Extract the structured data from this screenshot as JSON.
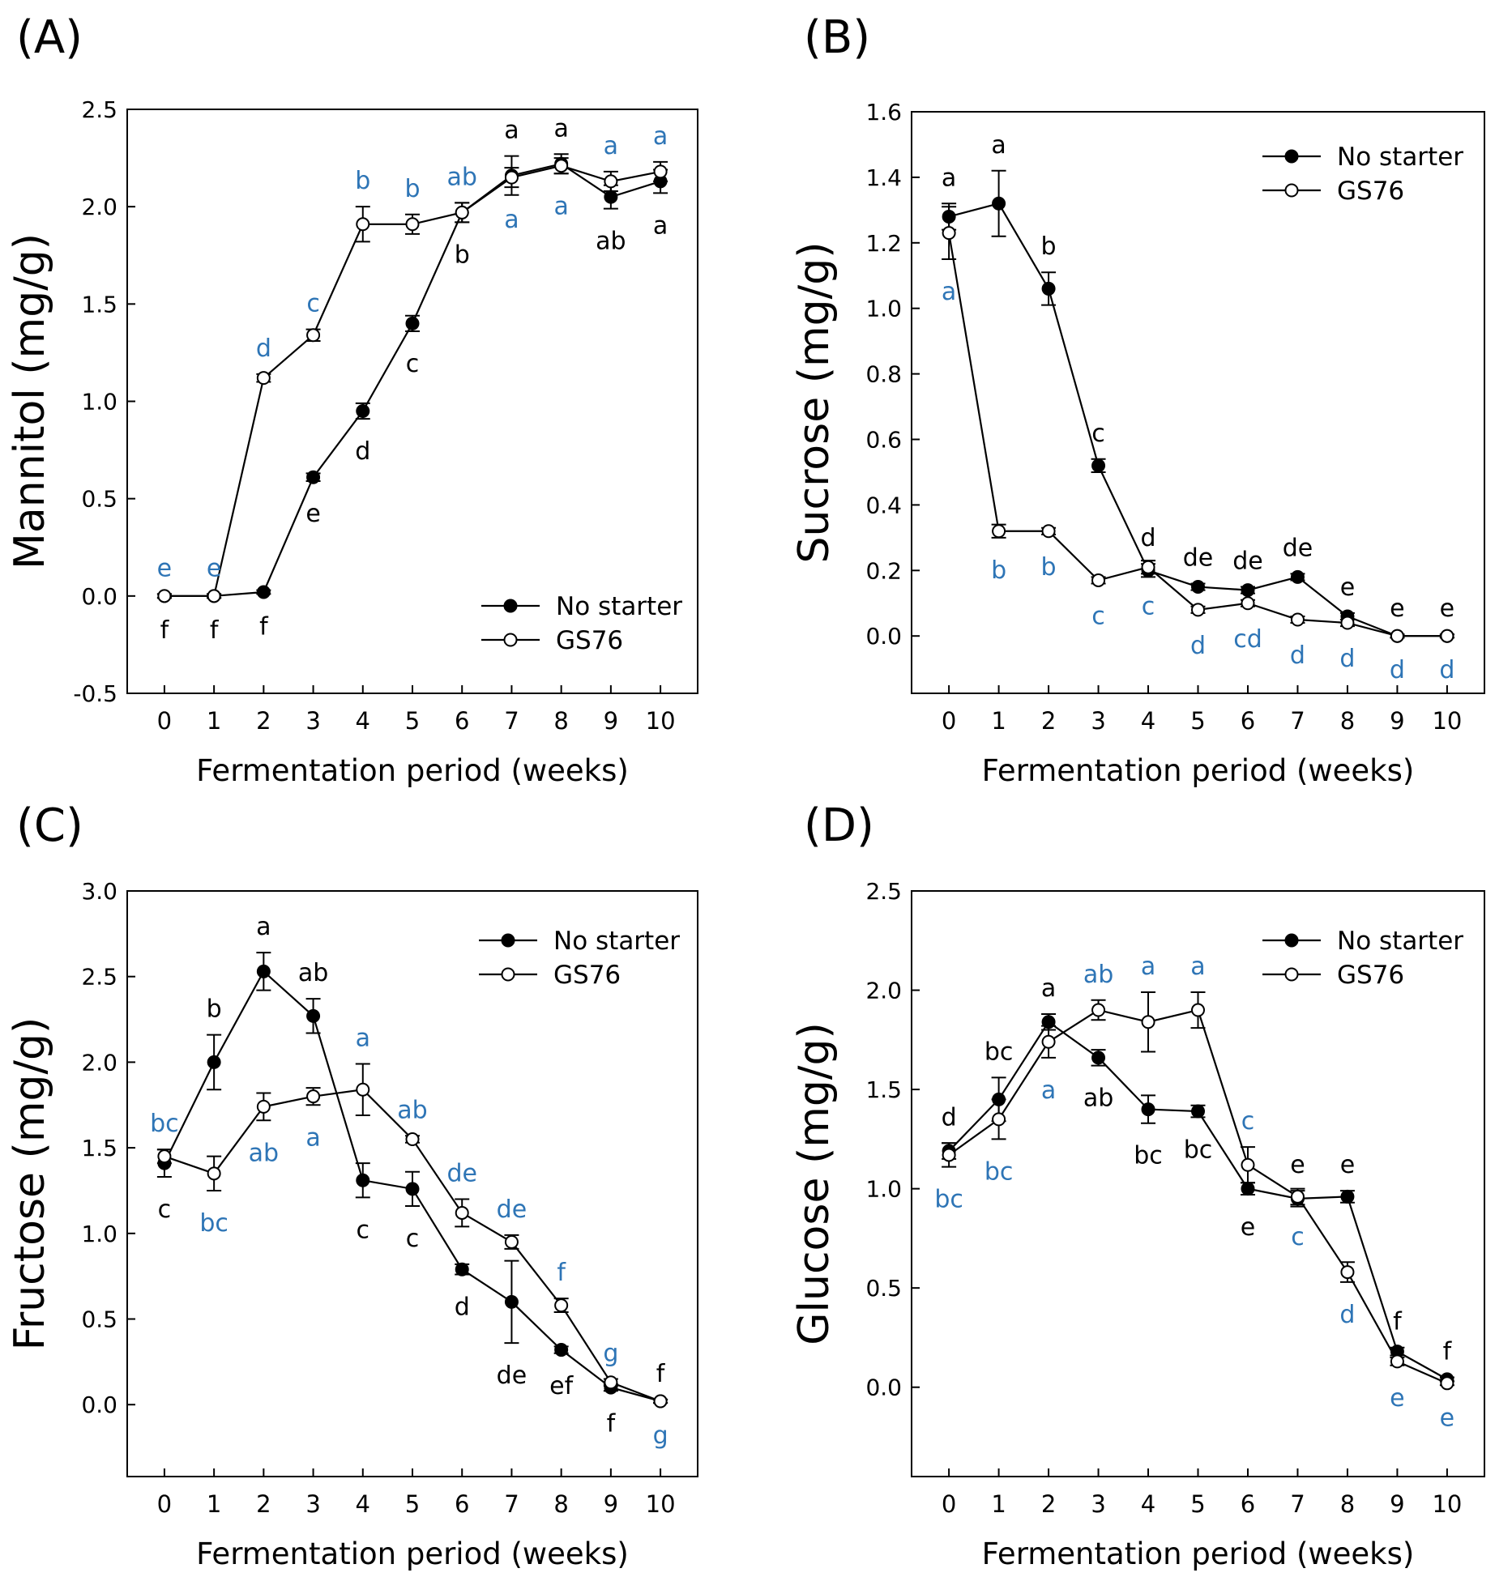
{
  "colors": {
    "black": "#000000",
    "blue": "#2e75b6",
    "white": "#ffffff"
  },
  "legend": {
    "series": [
      "No starter",
      "GS76"
    ]
  },
  "chart_data": [
    {
      "type": "line",
      "panel": "(A)",
      "xlabel": "Fermentation period (weeks)",
      "ylabel": "Mannitol (mg/g)",
      "x": [
        0,
        1,
        2,
        3,
        4,
        5,
        6,
        7,
        8,
        9,
        10
      ],
      "xlim": [
        -0.75,
        10.75
      ],
      "ylim": [
        -0.5,
        2.5
      ],
      "yticks": [
        "-0.5",
        "0.0",
        "0.5",
        "1.0",
        "1.5",
        "2.0",
        "2.5"
      ],
      "legend_position": "bottom-right",
      "series": [
        {
          "name": "No starter",
          "marker": "filled",
          "values": [
            0.0,
            0.0,
            0.02,
            0.61,
            0.95,
            1.4,
            1.97,
            2.16,
            2.22,
            2.05,
            2.13
          ],
          "errors": [
            0.01,
            0.01,
            0.01,
            0.02,
            0.04,
            0.04,
            0.05,
            0.1,
            0.05,
            0.06,
            0.06
          ],
          "letters": [
            "f",
            "f",
            "f",
            "e",
            "d",
            "c",
            "b",
            "a",
            "a",
            "ab",
            "a"
          ]
        },
        {
          "name": "GS76",
          "marker": "open",
          "values": [
            0.0,
            0.0,
            1.12,
            1.34,
            1.91,
            1.91,
            1.97,
            2.15,
            2.21,
            2.13,
            2.18
          ],
          "errors": [
            0.01,
            0.01,
            0.02,
            0.03,
            0.09,
            0.05,
            0.05,
            0.05,
            0.04,
            0.05,
            0.05
          ],
          "letters": [
            "e",
            "e",
            "d",
            "c",
            "b",
            "b",
            "ab",
            "a",
            "a",
            "a",
            "a"
          ]
        }
      ]
    },
    {
      "type": "line",
      "panel": "(B)",
      "xlabel": "Fermentation period (weeks)",
      "ylabel": "Sucrose (mg/g)",
      "x": [
        0,
        1,
        2,
        3,
        4,
        5,
        6,
        7,
        8,
        9,
        10
      ],
      "xlim": [
        -0.75,
        10.75
      ],
      "ylim": [
        -0.175,
        1.6
      ],
      "yticks": [
        "0.0",
        "0.2",
        "0.4",
        "0.6",
        "0.8",
        "1.0",
        "1.2",
        "1.4",
        "1.6"
      ],
      "legend_position": "top-right",
      "series": [
        {
          "name": "No starter",
          "marker": "filled",
          "values": [
            1.28,
            1.32,
            1.06,
            0.52,
            0.2,
            0.15,
            0.14,
            0.18,
            0.06,
            0.0,
            0.0
          ],
          "errors": [
            0.04,
            0.1,
            0.05,
            0.02,
            0.02,
            0.01,
            0.01,
            0.01,
            0.01,
            0.005,
            0.005
          ],
          "letters": [
            "a",
            "a",
            "b",
            "c",
            "d",
            "de",
            "de",
            "de",
            "e",
            "e",
            "e"
          ]
        },
        {
          "name": "GS76",
          "marker": "open",
          "values": [
            1.23,
            0.32,
            0.32,
            0.17,
            0.21,
            0.08,
            0.1,
            0.05,
            0.04,
            0.0,
            0.0
          ],
          "errors": [
            0.08,
            0.02,
            0.01,
            0.01,
            0.02,
            0.01,
            0.01,
            0.01,
            0.01,
            0.005,
            0.005
          ],
          "letters": [
            "a",
            "b",
            "b",
            "c",
            "c",
            "d",
            "cd",
            "d",
            "d",
            "d",
            "d"
          ]
        }
      ]
    },
    {
      "type": "line",
      "panel": "(C)",
      "xlabel": "Fermentation period (weeks)",
      "ylabel": "Fructose (mg/g)",
      "x": [
        0,
        1,
        2,
        3,
        4,
        5,
        6,
        7,
        8,
        9,
        10
      ],
      "xlim": [
        -0.75,
        10.75
      ],
      "ylim": [
        -0.42,
        3.0
      ],
      "yticks": [
        "0.0",
        "0.5",
        "1.0",
        "1.5",
        "2.0",
        "2.5",
        "3.0"
      ],
      "legend_position": "top-right",
      "series": [
        {
          "name": "No starter",
          "marker": "filled",
          "values": [
            1.41,
            2.0,
            2.53,
            2.27,
            1.31,
            1.26,
            0.79,
            0.6,
            0.32,
            0.1,
            0.02
          ],
          "errors": [
            0.08,
            0.16,
            0.11,
            0.1,
            0.1,
            0.1,
            0.03,
            0.24,
            0.02,
            0.02,
            0.01
          ],
          "letters": [
            "c",
            "b",
            "a",
            "ab",
            "c",
            "c",
            "d",
            "de",
            "ef",
            "f",
            "f"
          ]
        },
        {
          "name": "GS76",
          "marker": "open",
          "values": [
            1.45,
            1.35,
            1.74,
            1.8,
            1.84,
            1.55,
            1.12,
            0.95,
            0.58,
            0.13,
            0.02
          ],
          "errors": [
            0.04,
            0.1,
            0.08,
            0.05,
            0.15,
            0.02,
            0.08,
            0.04,
            0.04,
            0.02,
            0.01
          ],
          "letters": [
            "bc",
            "bc",
            "ab",
            "a",
            "a",
            "ab",
            "de",
            "de",
            "f",
            "g",
            "g"
          ]
        }
      ]
    },
    {
      "type": "line",
      "panel": "(D)",
      "xlabel": "Fermentation period (weeks)",
      "ylabel": "Glucose (mg/g)",
      "x": [
        0,
        1,
        2,
        3,
        4,
        5,
        6,
        7,
        8,
        9,
        10
      ],
      "xlim": [
        -0.75,
        10.75
      ],
      "ylim": [
        -0.45,
        2.5
      ],
      "yticks": [
        "0.0",
        "0.5",
        "1.0",
        "1.5",
        "2.0",
        "2.5"
      ],
      "legend_position": "top-right",
      "series": [
        {
          "name": "No starter",
          "marker": "filled",
          "values": [
            1.19,
            1.45,
            1.84,
            1.66,
            1.4,
            1.39,
            1.0,
            0.95,
            0.96,
            0.18,
            0.04
          ],
          "errors": [
            0.04,
            0.11,
            0.04,
            0.04,
            0.07,
            0.03,
            0.03,
            0.04,
            0.03,
            0.02,
            0.01
          ],
          "letters": [
            "d",
            "bc",
            "a",
            "ab",
            "bc",
            "bc",
            "e",
            "e",
            "e",
            "f",
            "f"
          ]
        },
        {
          "name": "GS76",
          "marker": "open",
          "values": [
            1.17,
            1.35,
            1.74,
            1.9,
            1.84,
            1.9,
            1.12,
            0.96,
            0.58,
            0.13,
            0.02
          ],
          "errors": [
            0.06,
            0.1,
            0.08,
            0.05,
            0.15,
            0.09,
            0.09,
            0.04,
            0.05,
            0.02,
            0.01
          ],
          "letters": [
            "bc",
            "bc",
            "a",
            "ab",
            "a",
            "a",
            "c",
            "c",
            "d",
            "e",
            "e"
          ]
        }
      ]
    }
  ]
}
